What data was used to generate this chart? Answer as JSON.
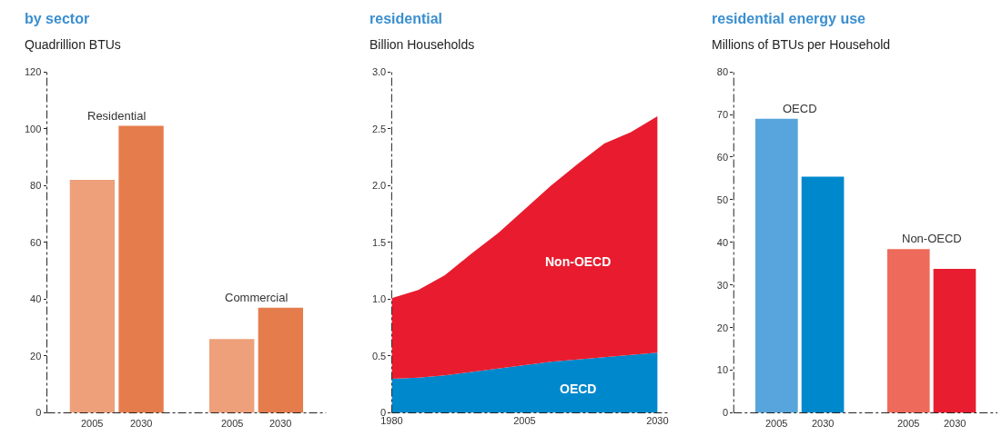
{
  "chart_data": [
    {
      "type": "bar",
      "title": "by sector",
      "ylabel": "Quadrillion BTUs",
      "categories": [
        "Residential",
        "Commercial"
      ],
      "series": [
        {
          "name": "2005",
          "colors": [
            "#eda07a",
            "#eda07a"
          ],
          "values": [
            82,
            26
          ]
        },
        {
          "name": "2030",
          "colors": [
            "#e57c4c",
            "#e57c4c"
          ],
          "values": [
            101,
            37
          ]
        }
      ],
      "ylim": [
        0,
        120
      ],
      "yticks": [
        0,
        20,
        40,
        60,
        80,
        100,
        120
      ]
    },
    {
      "type": "area",
      "title": "residential",
      "ylabel": "Billion Households",
      "stacked": true,
      "x": [
        1980,
        1985,
        1990,
        1995,
        2000,
        2005,
        2010,
        2015,
        2020,
        2025,
        2030
      ],
      "series": [
        {
          "name": "OECD",
          "color": "#0088cc",
          "values": [
            0.3,
            0.31,
            0.33,
            0.36,
            0.39,
            0.42,
            0.45,
            0.47,
            0.49,
            0.51,
            0.53
          ]
        },
        {
          "name": "Non-OECD",
          "color": "#e81c2e",
          "values": [
            0.71,
            0.77,
            0.88,
            1.04,
            1.19,
            1.37,
            1.55,
            1.72,
            1.88,
            1.96,
            2.08
          ]
        }
      ],
      "xlim": [
        1980,
        2032
      ],
      "xticks": [
        1980,
        2005,
        2030
      ],
      "ylim": [
        0,
        3
      ],
      "yticks": [
        0,
        0.5,
        {
          "value": 1,
          "label": "1.0"
        },
        1.5,
        {
          "value": 2,
          "label": "2.0"
        },
        2.5,
        {
          "value": 3,
          "label": "3.0"
        }
      ]
    },
    {
      "type": "bar",
      "title": "residential energy use",
      "ylabel": "Millions of BTUs per Household",
      "categories": [
        "OECD",
        "Non-OECD"
      ],
      "series": [
        {
          "name": "2005",
          "colors": [
            "#57a5dc",
            "#ee6a5a"
          ],
          "values": [
            69,
            38.4
          ]
        },
        {
          "name": "2030",
          "colors": [
            "#0088cc",
            "#e81e30"
          ],
          "values": [
            55.4,
            33.8
          ]
        }
      ],
      "ylim": [
        0,
        80
      ],
      "yticks": [
        0,
        10,
        20,
        30,
        40,
        50,
        60,
        70,
        80
      ]
    }
  ]
}
